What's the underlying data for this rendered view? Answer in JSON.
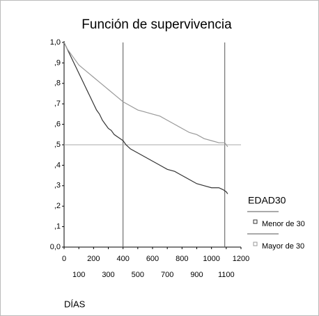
{
  "chart_data": {
    "type": "line",
    "title": "Función de supervivencia",
    "xlabel": "DÍAS",
    "legend_title": "EDAD30",
    "legend": "right",
    "grid": false,
    "xlim": [
      0,
      1200
    ],
    "xticks": [
      0,
      100,
      200,
      300,
      400,
      500,
      600,
      700,
      800,
      900,
      1000,
      1100,
      1200
    ],
    "ylim": [
      0,
      1.0
    ],
    "yticks": [
      {
        "value": 0,
        "label": "0,0"
      },
      {
        "value": 0.1,
        "label": ",1"
      },
      {
        "value": 0.2,
        "label": ",2"
      },
      {
        "value": 0.3,
        "label": ",3"
      },
      {
        "value": 0.4,
        "label": ",4"
      },
      {
        "value": 0.5,
        "label": ",5"
      },
      {
        "value": 0.6,
        "label": ",6"
      },
      {
        "value": 0.7,
        "label": ",7"
      },
      {
        "value": 0.8,
        "label": ",8"
      },
      {
        "value": 0.9,
        "label": ",9"
      },
      {
        "value": 1.0,
        "label": "1,0"
      }
    ],
    "reference_lines": {
      "x": [
        400,
        1090
      ],
      "y": [
        0.5
      ]
    },
    "series": [
      {
        "name": "Menor de 30",
        "color": "#333333",
        "x": [
          0,
          20,
          40,
          60,
          80,
          100,
          120,
          140,
          160,
          180,
          200,
          220,
          240,
          260,
          280,
          300,
          320,
          340,
          360,
          380,
          400,
          420,
          450,
          500,
          550,
          600,
          650,
          700,
          750,
          800,
          850,
          900,
          950,
          1000,
          1050,
          1080,
          1100,
          1110
        ],
        "values": [
          1.0,
          0.97,
          0.94,
          0.91,
          0.88,
          0.85,
          0.82,
          0.79,
          0.76,
          0.73,
          0.7,
          0.67,
          0.65,
          0.62,
          0.6,
          0.58,
          0.57,
          0.55,
          0.54,
          0.53,
          0.52,
          0.5,
          0.48,
          0.46,
          0.44,
          0.42,
          0.4,
          0.38,
          0.37,
          0.35,
          0.33,
          0.31,
          0.3,
          0.29,
          0.29,
          0.28,
          0.27,
          0.26
        ]
      },
      {
        "name": "Mayor de 30",
        "color": "#999999",
        "x": [
          0,
          20,
          40,
          60,
          80,
          100,
          150,
          200,
          250,
          300,
          350,
          400,
          450,
          500,
          550,
          600,
          650,
          700,
          750,
          800,
          850,
          900,
          950,
          1000,
          1050,
          1090,
          1110
        ],
        "values": [
          1.0,
          0.97,
          0.95,
          0.93,
          0.91,
          0.89,
          0.86,
          0.83,
          0.8,
          0.77,
          0.74,
          0.71,
          0.69,
          0.67,
          0.66,
          0.65,
          0.64,
          0.62,
          0.6,
          0.58,
          0.56,
          0.55,
          0.53,
          0.52,
          0.51,
          0.51,
          0.49
        ]
      }
    ]
  }
}
